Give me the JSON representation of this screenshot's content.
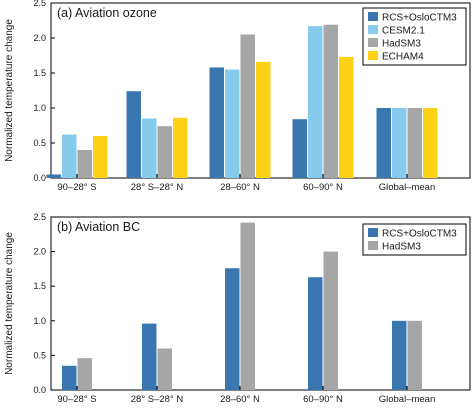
{
  "colors": {
    "RCS+OsloCTM3": "#3a77b0",
    "CESM2.1": "#86cbec",
    "HadSM3": "#a6a6a6",
    "ECHAM4": "#fcd116"
  },
  "chart_data": [
    {
      "type": "bar",
      "title": "(a) Aviation ozone",
      "ylabel": "Normalized temperature change",
      "xlabel": "",
      "ylim": [
        0,
        2.5
      ],
      "yticks": [
        "0.0",
        "0.5",
        "1.0",
        "1.5",
        "2.0",
        "2.5"
      ],
      "grid": false,
      "legend_position": "top-right",
      "categories": [
        "90–28° S",
        "28° S–28° N",
        "28–60° N",
        "60–90° N",
        "Global–mean"
      ],
      "series": [
        {
          "name": "RCS+OsloCTM3",
          "values": [
            0.05,
            1.24,
            1.58,
            0.84,
            1.0
          ]
        },
        {
          "name": "CESM2.1",
          "values": [
            0.62,
            0.85,
            1.55,
            2.17,
            1.0
          ]
        },
        {
          "name": "HadSM3",
          "values": [
            0.4,
            0.74,
            2.05,
            2.19,
            1.0
          ]
        },
        {
          "name": "ECHAM4",
          "values": [
            0.6,
            0.86,
            1.66,
            1.73,
            1.0
          ]
        }
      ]
    },
    {
      "type": "bar",
      "title": "(b) Aviation BC",
      "ylabel": "Normalized temperature change",
      "xlabel": "",
      "ylim": [
        0,
        2.5
      ],
      "yticks": [
        "0.0",
        "0.5",
        "1.0",
        "1.5",
        "2.0",
        "2.5"
      ],
      "grid": false,
      "legend_position": "top-right",
      "categories": [
        "90–28° S",
        "28° S–28° N",
        "28–60° N",
        "60–90° N",
        "Global–mean"
      ],
      "series": [
        {
          "name": "RCS+OsloCTM3",
          "values": [
            0.35,
            0.96,
            1.76,
            1.63,
            1.0
          ]
        },
        {
          "name": "HadSM3",
          "values": [
            0.46,
            0.6,
            2.42,
            2.0,
            1.0
          ]
        }
      ]
    }
  ]
}
